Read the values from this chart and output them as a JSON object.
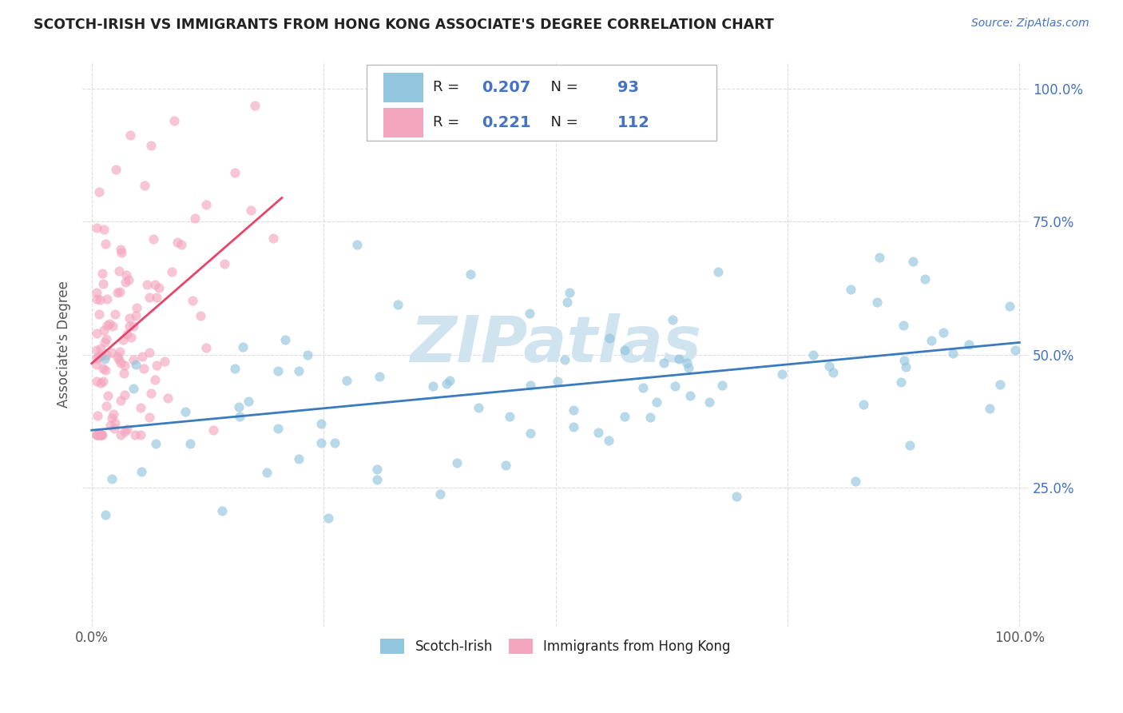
{
  "title": "SCOTCH-IRISH VS IMMIGRANTS FROM HONG KONG ASSOCIATE'S DEGREE CORRELATION CHART",
  "source": "Source: ZipAtlas.com",
  "ylabel": "Associate's Degree",
  "legend_label1": "Scotch-Irish",
  "legend_label2": "Immigrants from Hong Kong",
  "R1": 0.207,
  "N1": 93,
  "R2": 0.221,
  "N2": 112,
  "color1": "#92c5de",
  "color2": "#f4a6be",
  "line_color1": "#3a7abf",
  "line_color2": "#e8446a",
  "watermark": "ZIPatlas",
  "watermark_color": "#d0e4f0",
  "xlim": [
    0.0,
    1.0
  ],
  "ylim": [
    0.0,
    1.0
  ],
  "background_color": "#ffffff",
  "grid_color": "#dddddd",
  "title_color": "#222222",
  "source_color": "#4472c4",
  "ytick_color": "#4472c4",
  "xtick_color": "#555555",
  "ylabel_color": "#555555"
}
